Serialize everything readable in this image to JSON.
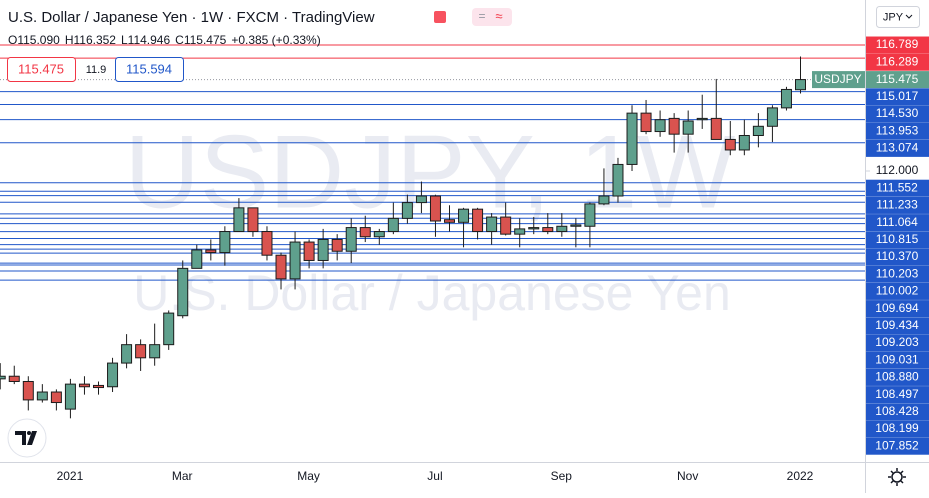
{
  "chart_data": {
    "type": "candlestick",
    "title": "U.S. Dollar / Japanese Yen · 1W · FXCM · TradingView",
    "ohlc_legend": [
      "O115.090",
      "H116.352",
      "L114.946",
      "C115.475",
      "+0.385 (+0.33%)"
    ],
    "order_panel": {
      "sell": "115.475",
      "spread": "11.9",
      "buy": "115.594"
    },
    "watermark": [
      "USDJPY, 1W",
      "U.S. Dollar / Japanese Yen"
    ],
    "currency": "JPY",
    "categories": [
      null,
      null,
      null,
      null,
      null,
      "2021",
      null,
      null,
      null,
      null,
      null,
      null,
      null,
      "Mar",
      null,
      null,
      null,
      null,
      null,
      null,
      null,
      null,
      "May",
      null,
      null,
      null,
      null,
      null,
      null,
      null,
      null,
      "Jul",
      null,
      null,
      null,
      null,
      null,
      null,
      null,
      null,
      "Sep",
      null,
      null,
      null,
      null,
      null,
      null,
      null,
      null,
      "Nov",
      null,
      null,
      null,
      null,
      null,
      null,
      null,
      "2022"
    ],
    "series": [
      {
        "name": "USDJPY",
        "open": [
          104.1,
          104.2,
          104.0,
          103.3,
          103.6,
          102.95,
          103.9,
          103.85,
          103.8,
          104.7,
          105.4,
          104.9,
          105.4,
          106.5,
          108.3,
          109.0,
          108.9,
          109.7,
          110.6,
          109.7,
          108.8,
          107.9,
          109.3,
          108.6,
          109.4,
          108.95,
          109.85,
          109.5,
          109.7,
          110.2,
          110.8,
          111.05,
          110.15,
          110.05,
          110.55,
          109.7,
          110.25,
          109.6,
          109.8,
          109.85,
          109.7,
          109.9,
          109.9,
          110.75,
          111.05,
          112.25,
          114.2,
          113.5,
          114.0,
          113.4,
          113.95,
          114.0,
          113.2,
          112.8,
          113.35,
          113.7,
          114.4,
          115.09
        ],
        "high": [
          104.7,
          104.6,
          104.2,
          103.9,
          103.7,
          104.1,
          104.2,
          104.0,
          104.9,
          105.8,
          105.6,
          106.2,
          106.7,
          108.6,
          109.2,
          109.4,
          109.9,
          110.97,
          110.6,
          109.9,
          108.9,
          109.7,
          109.4,
          109.8,
          109.6,
          110.2,
          110.3,
          109.8,
          110.8,
          111.1,
          111.6,
          111.1,
          110.7,
          110.6,
          110.6,
          110.4,
          110.8,
          110.2,
          110.25,
          110.4,
          110.4,
          110.2,
          110.8,
          112.1,
          112.5,
          114.5,
          114.7,
          114.3,
          114.2,
          114.3,
          114.9,
          115.5,
          113.9,
          113.95,
          114.2,
          114.5,
          115.2,
          116.352
        ],
        "low": [
          103.7,
          103.9,
          102.9,
          103.2,
          102.9,
          102.6,
          103.5,
          103.5,
          103.6,
          104.5,
          104.4,
          104.6,
          105.2,
          106.4,
          108.3,
          108.6,
          108.4,
          109.7,
          109.5,
          108.6,
          107.5,
          107.5,
          108.3,
          108.3,
          108.6,
          108.5,
          109.3,
          109.2,
          109.6,
          110.0,
          110.4,
          109.5,
          109.7,
          109.1,
          109.4,
          109.2,
          109.55,
          109.1,
          109.6,
          109.6,
          109.5,
          109.1,
          109.1,
          110.7,
          110.8,
          112.0,
          113.4,
          113.3,
          112.7,
          112.7,
          113.6,
          113.2,
          112.6,
          112.6,
          112.9,
          113.1,
          114.3,
          114.946
        ],
        "close": [
          104.2,
          104.0,
          103.3,
          103.6,
          103.2,
          103.9,
          103.8,
          103.77,
          104.7,
          105.4,
          104.9,
          105.4,
          106.6,
          108.3,
          109.0,
          108.9,
          109.7,
          110.6,
          109.7,
          108.8,
          107.9,
          109.3,
          108.6,
          109.4,
          108.95,
          109.85,
          109.5,
          109.7,
          110.2,
          110.8,
          111.05,
          110.1,
          110.05,
          110.55,
          109.7,
          110.25,
          109.6,
          109.8,
          109.85,
          109.7,
          109.9,
          109.95,
          110.75,
          111.05,
          112.25,
          114.2,
          113.5,
          113.95,
          113.4,
          113.9,
          114.0,
          113.2,
          112.8,
          113.35,
          113.7,
          114.4,
          115.1,
          115.475
        ]
      }
    ],
    "up_color": "#5fa08d",
    "down_color": "#d9534f",
    "last_price": 115.475,
    "last_price_color": "#5fa08d",
    "ylim": [
      100.94,
      118.5
    ],
    "yticks": [
      {
        "value": 112,
        "label": "112.000"
      }
    ],
    "levels": [
      {
        "color": "#f23645",
        "values": [
          116.789,
          116.289
        ]
      },
      {
        "color": "#2157c9",
        "values": [
          115.017,
          {
            "value": 114.53,
            "label": "114.530"
          },
          113.953,
          113.074,
          111.552,
          111.233,
          111.064,
          110.815,
          {
            "value": 110.37,
            "label": "110.370"
          },
          110.203,
          110.002,
          109.694,
          109.434,
          109.203,
          109.031,
          {
            "value": 108.88,
            "label": "108.880"
          },
          108.497,
          108.428,
          108.199,
          107.852
        ]
      }
    ]
  }
}
